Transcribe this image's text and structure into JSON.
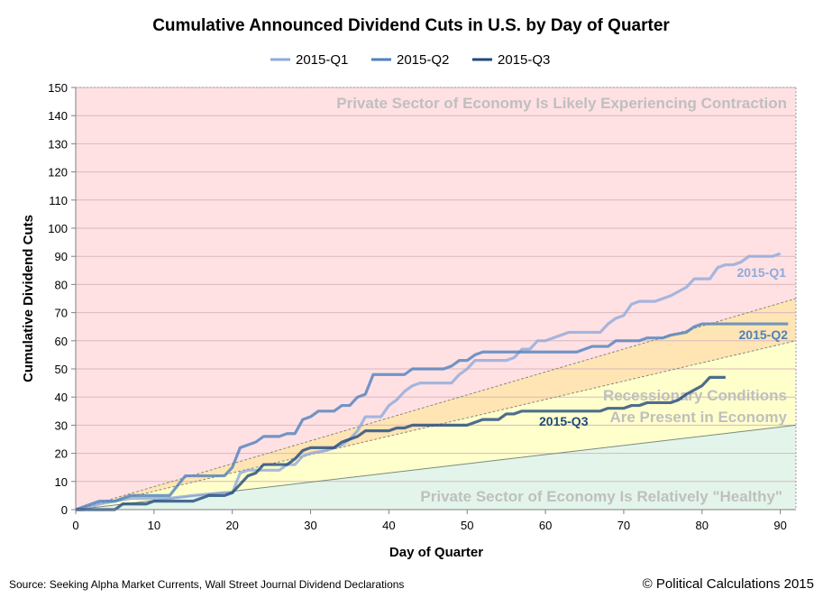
{
  "chart_data": {
    "type": "line",
    "title": "Cumulative Announced Dividend Cuts in U.S. by Day of Quarter",
    "xlabel": "Day of Quarter",
    "ylabel": "Cumulative Dividend Cuts",
    "xlim": [
      0,
      92
    ],
    "ylim": [
      0,
      150
    ],
    "xticks": [
      0,
      10,
      20,
      30,
      40,
      50,
      60,
      70,
      80,
      90
    ],
    "yticks": [
      0,
      10,
      20,
      30,
      40,
      50,
      60,
      70,
      80,
      90,
      100,
      110,
      120,
      130,
      140,
      150
    ],
    "grid": "horizontal",
    "legend": "top",
    "zones": [
      {
        "label": "Private Sector of Economy Is Likely Experiencing Contraction",
        "color": "#ffe1e4"
      },
      {
        "label": "",
        "color": "#ffe5b4"
      },
      {
        "label": "Recessionary Conditions Are Present in Economy",
        "label_lines": [
          "Recessionary Conditions",
          "Are Present in Economy"
        ],
        "color": "#ffffcc"
      },
      {
        "label": "Private Sector of Economy Is Relatively \"Healthy\"",
        "color": "#e3f5ea"
      }
    ],
    "zone_boundaries_at_day_92": [
      75,
      60,
      30
    ],
    "series": [
      {
        "name": "2015-Q1",
        "color": "#8eaadb",
        "points": [
          [
            0,
            0
          ],
          [
            1,
            0
          ],
          [
            3,
            2
          ],
          [
            5,
            3
          ],
          [
            7,
            4
          ],
          [
            12,
            4
          ],
          [
            15,
            5
          ],
          [
            19,
            6
          ],
          [
            20,
            6
          ],
          [
            21,
            13
          ],
          [
            22,
            14
          ],
          [
            26,
            14
          ],
          [
            27,
            16
          ],
          [
            28,
            16
          ],
          [
            29,
            19
          ],
          [
            30,
            20
          ],
          [
            32,
            21
          ],
          [
            33,
            22
          ],
          [
            34,
            23
          ],
          [
            35,
            25
          ],
          [
            36,
            28
          ],
          [
            37,
            33
          ],
          [
            39,
            33
          ],
          [
            40,
            37
          ],
          [
            41,
            39
          ],
          [
            42,
            42
          ],
          [
            43,
            44
          ],
          [
            44,
            45
          ],
          [
            48,
            45
          ],
          [
            49,
            48
          ],
          [
            50,
            50
          ],
          [
            51,
            53
          ],
          [
            55,
            53
          ],
          [
            56,
            54
          ],
          [
            57,
            57
          ],
          [
            58,
            57
          ],
          [
            59,
            60
          ],
          [
            60,
            60
          ],
          [
            61,
            61
          ],
          [
            63,
            63
          ],
          [
            67,
            63
          ],
          [
            68,
            66
          ],
          [
            69,
            68
          ],
          [
            70,
            69
          ],
          [
            71,
            73
          ],
          [
            72,
            74
          ],
          [
            74,
            74
          ],
          [
            76,
            76
          ],
          [
            78,
            79
          ],
          [
            79,
            82
          ],
          [
            81,
            82
          ],
          [
            82,
            86
          ],
          [
            83,
            87
          ],
          [
            84,
            87
          ],
          [
            85,
            88
          ],
          [
            86,
            90
          ],
          [
            89,
            90
          ],
          [
            90,
            91
          ]
        ]
      },
      {
        "name": "2015-Q2",
        "color": "#4f81bd",
        "points": [
          [
            0,
            0
          ],
          [
            1,
            1
          ],
          [
            3,
            3
          ],
          [
            5,
            3
          ],
          [
            6,
            4
          ],
          [
            7,
            5
          ],
          [
            12,
            5
          ],
          [
            14,
            12
          ],
          [
            19,
            12
          ],
          [
            20,
            15
          ],
          [
            21,
            22
          ],
          [
            23,
            24
          ],
          [
            24,
            26
          ],
          [
            26,
            26
          ],
          [
            27,
            27
          ],
          [
            28,
            27
          ],
          [
            29,
            32
          ],
          [
            30,
            33
          ],
          [
            31,
            35
          ],
          [
            33,
            35
          ],
          [
            34,
            37
          ],
          [
            35,
            37
          ],
          [
            36,
            40
          ],
          [
            37,
            41
          ],
          [
            38,
            48
          ],
          [
            42,
            48
          ],
          [
            43,
            50
          ],
          [
            47,
            50
          ],
          [
            48,
            51
          ],
          [
            49,
            53
          ],
          [
            50,
            53
          ],
          [
            51,
            55
          ],
          [
            52,
            56
          ],
          [
            64,
            56
          ],
          [
            66,
            58
          ],
          [
            68,
            58
          ],
          [
            69,
            60
          ],
          [
            72,
            60
          ],
          [
            73,
            61
          ],
          [
            75,
            61
          ],
          [
            76,
            62
          ],
          [
            78,
            63
          ],
          [
            79,
            65
          ],
          [
            80,
            66
          ],
          [
            91,
            66
          ]
        ]
      },
      {
        "name": "2015-Q3",
        "color": "#1f497d",
        "points": [
          [
            0,
            0
          ],
          [
            1,
            0
          ],
          [
            5,
            0
          ],
          [
            6,
            2
          ],
          [
            9,
            2
          ],
          [
            10,
            3
          ],
          [
            15,
            3
          ],
          [
            17,
            5
          ],
          [
            19,
            5
          ],
          [
            20,
            6
          ],
          [
            21,
            9
          ],
          [
            22,
            12
          ],
          [
            23,
            13
          ],
          [
            24,
            16
          ],
          [
            27,
            16
          ],
          [
            28,
            18
          ],
          [
            29,
            21
          ],
          [
            30,
            22
          ],
          [
            33,
            22
          ],
          [
            34,
            24
          ],
          [
            35,
            25
          ],
          [
            36,
            26
          ],
          [
            37,
            28
          ],
          [
            40,
            28
          ],
          [
            41,
            29
          ],
          [
            42,
            29
          ],
          [
            43,
            30
          ],
          [
            50,
            30
          ],
          [
            52,
            32
          ],
          [
            54,
            32
          ],
          [
            55,
            34
          ],
          [
            56,
            34
          ],
          [
            57,
            35
          ],
          [
            67,
            35
          ],
          [
            68,
            36
          ],
          [
            70,
            36
          ],
          [
            71,
            37
          ],
          [
            72,
            37
          ],
          [
            73,
            38
          ],
          [
            76,
            38
          ],
          [
            77,
            39
          ],
          [
            78,
            41
          ],
          [
            80,
            44
          ],
          [
            81,
            47
          ],
          [
            83,
            47
          ]
        ]
      }
    ],
    "series_labels": [
      "2015-Q1",
      "2015-Q2",
      "2015-Q3"
    ]
  },
  "footer": {
    "source": "Source: Seeking Alpha Market Currents, Wall Street Journal Dividend Declarations",
    "copyright": "© Political Calculations 2015"
  }
}
